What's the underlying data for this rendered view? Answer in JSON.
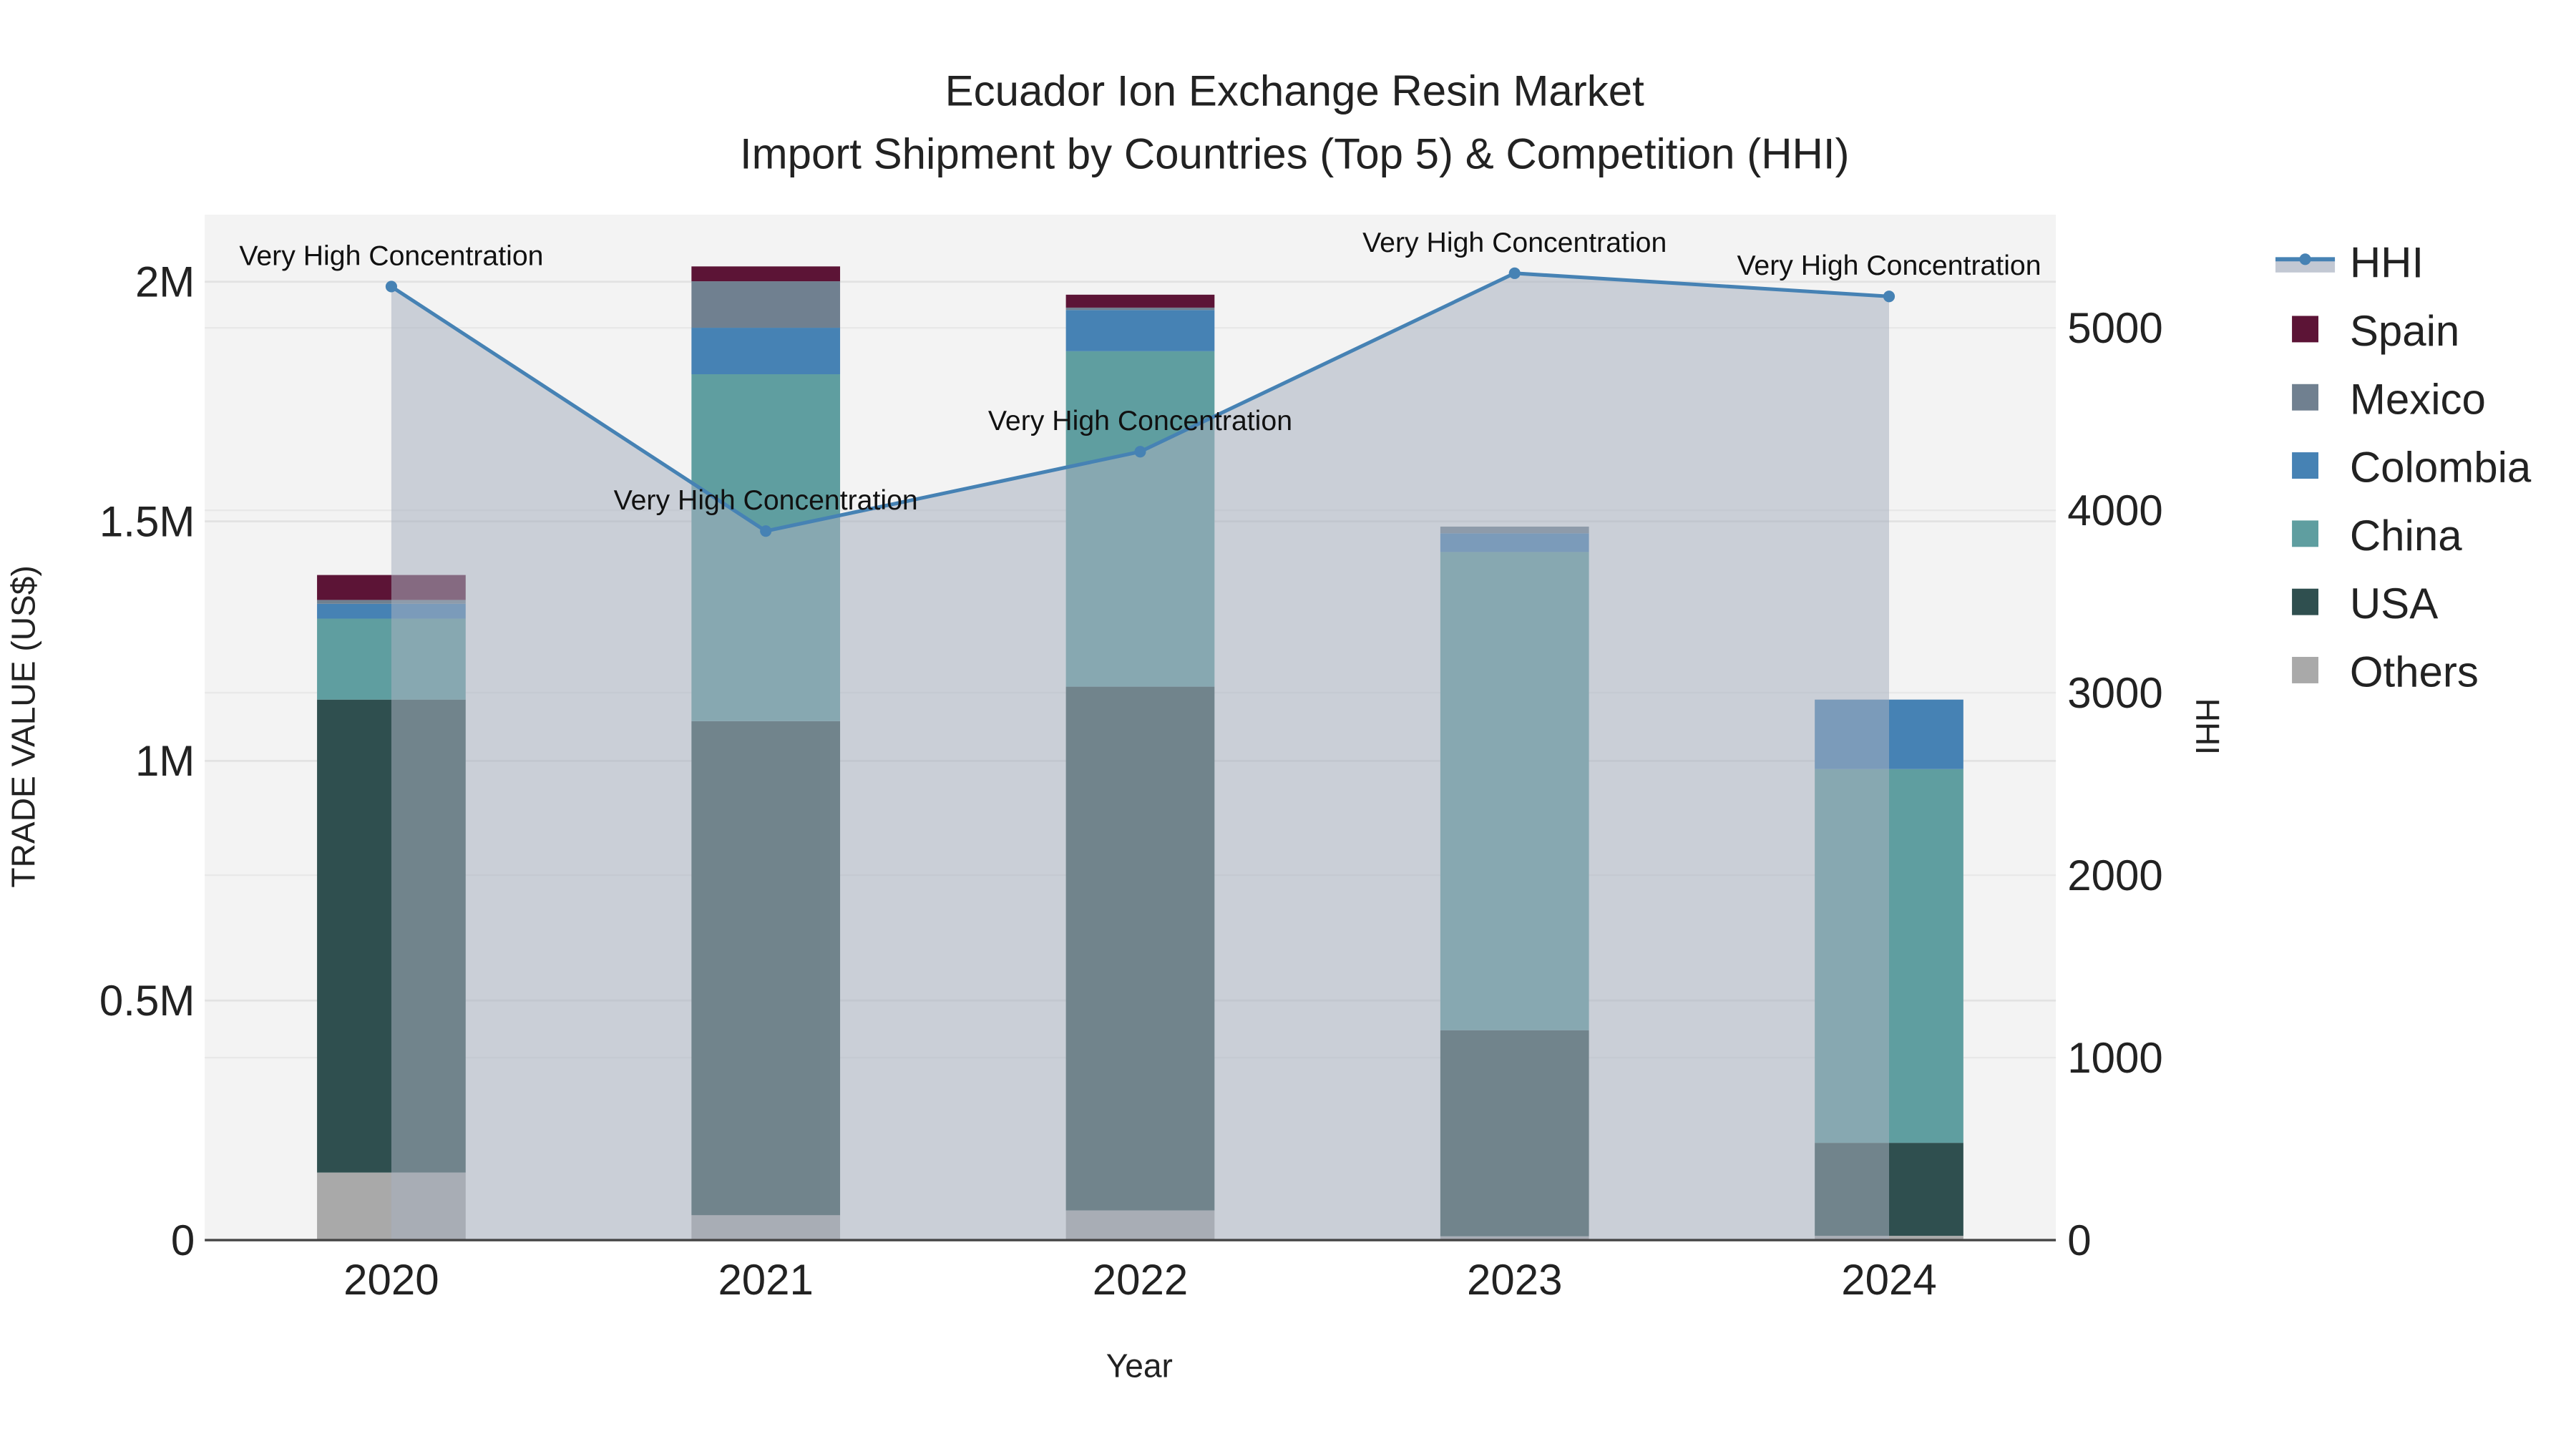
{
  "chart_data": {
    "type": "bar",
    "title": "Ecuador Ion Exchange Resin Market",
    "subtitle": "Import Shipment by Countries (Top 5) & Competition (HHI)",
    "xlabel": "Year",
    "ylabel": "TRADE VALUE (US$)",
    "y2label": "HHI",
    "categories": [
      "2020",
      "2021",
      "2022",
      "2023",
      "2024"
    ],
    "ylim": [
      0,
      2140000
    ],
    "y2lim": [
      0,
      5620
    ],
    "yticks": [
      {
        "v": 0,
        "label": "0"
      },
      {
        "v": 500000,
        "label": "0.5M"
      },
      {
        "v": 1000000,
        "label": "1M"
      },
      {
        "v": 1500000,
        "label": "1.5M"
      },
      {
        "v": 2000000,
        "label": "2M"
      }
    ],
    "y2ticks": [
      {
        "v": 0,
        "label": "0"
      },
      {
        "v": 1000,
        "label": "1000"
      },
      {
        "v": 2000,
        "label": "2000"
      },
      {
        "v": 3000,
        "label": "3000"
      },
      {
        "v": 4000,
        "label": "4000"
      },
      {
        "v": 5000,
        "label": "5000"
      }
    ],
    "series": [
      {
        "name": "Others",
        "color": "#a9a9a9",
        "values": [
          141000,
          52000,
          62000,
          8000,
          9000
        ]
      },
      {
        "name": "USA",
        "color": "#2f4f4f",
        "values": [
          987000,
          1031000,
          1093000,
          430000,
          194000
        ]
      },
      {
        "name": "China",
        "color": "#5f9ea0",
        "values": [
          169000,
          724000,
          700000,
          998000,
          780000
        ]
      },
      {
        "name": "Colombia",
        "color": "#4682b4",
        "values": [
          31000,
          97000,
          86000,
          39000,
          145000
        ]
      },
      {
        "name": "Mexico",
        "color": "#708090",
        "values": [
          8000,
          97000,
          5000,
          14000,
          0
        ]
      },
      {
        "name": "Spain",
        "color": "#5c1436",
        "values": [
          52000,
          31000,
          27000,
          0,
          0
        ]
      }
    ],
    "hhi": {
      "name": "HHI",
      "color": "#4682b4",
      "values": [
        5226,
        3886,
        4321,
        5299,
        5172
      ],
      "annotations": [
        "Very High Concentration",
        "Very High Concentration",
        "Very High Concentration",
        "Very High Concentration",
        "Very High Concentration"
      ]
    },
    "legend": {
      "placement": "right",
      "order": [
        "HHI",
        "Spain",
        "Mexico",
        "Colombia",
        "China",
        "USA",
        "Others"
      ]
    },
    "grid": true
  }
}
